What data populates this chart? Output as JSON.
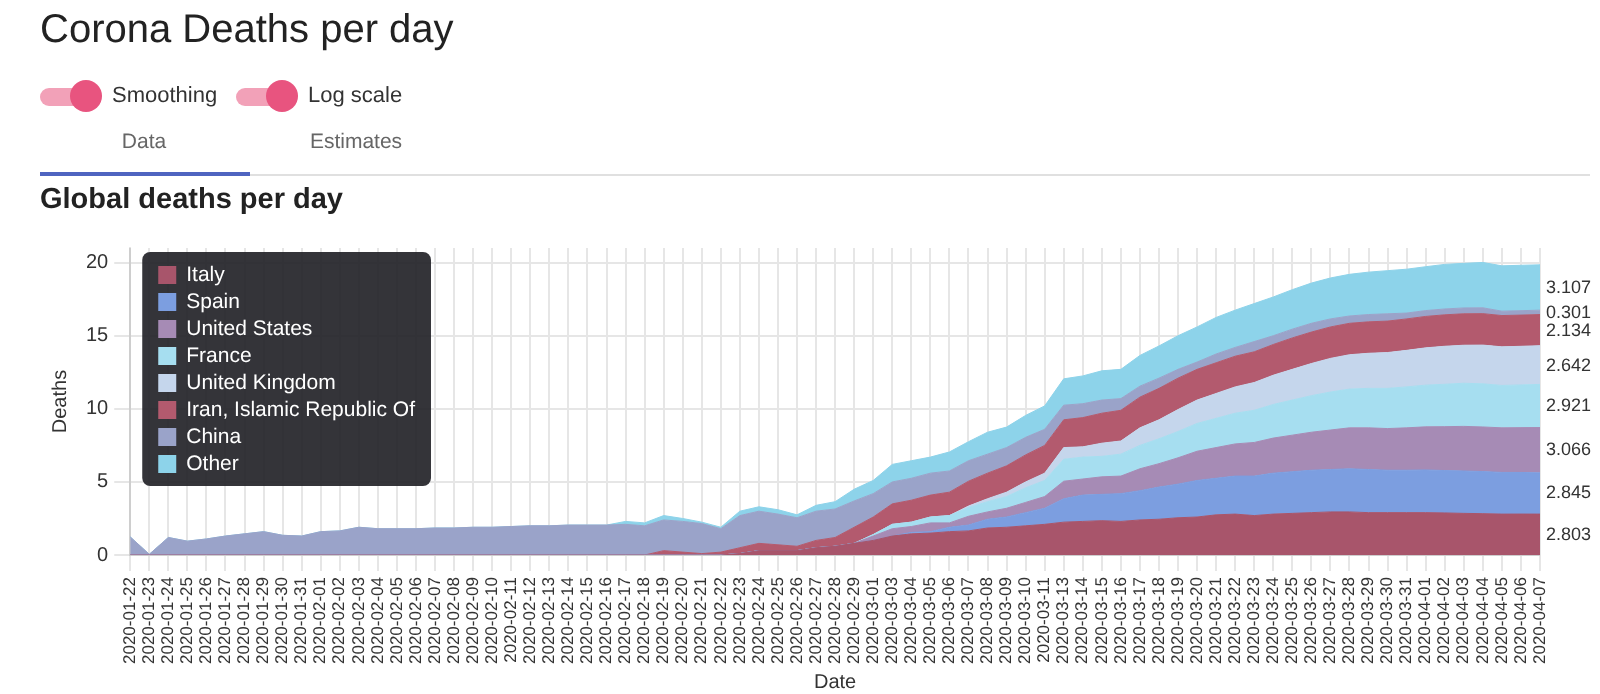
{
  "chart_data": {
    "type": "area",
    "title": "Corona Deaths per day",
    "subtitle": "Global deaths per day",
    "xlabel": "Date",
    "ylabel": "Deaths",
    "annotations": [
      "Smoothing",
      "Log scale",
      "Data",
      "Estimates"
    ],
    "categories": [
      "2020-01-22",
      "2020-01-23",
      "2020-01-24",
      "2020-01-25",
      "2020-01-26",
      "2020-01-27",
      "2020-01-28",
      "2020-01-29",
      "2020-01-30",
      "2020-01-31",
      "2020-02-01",
      "2020-02-02",
      "2020-02-03",
      "2020-02-04",
      "2020-02-05",
      "2020-02-06",
      "2020-02-07",
      "2020-02-08",
      "2020-02-09",
      "2020-02-10",
      "2020-02-11",
      "2020-02-12",
      "2020-02-13",
      "2020-02-14",
      "2020-02-15",
      "2020-02-16",
      "2020-02-17",
      "2020-02-18",
      "2020-02-19",
      "2020-02-20",
      "2020-02-21",
      "2020-02-22",
      "2020-02-23",
      "2020-02-24",
      "2020-02-25",
      "2020-02-26",
      "2020-02-27",
      "2020-02-28",
      "2020-02-29",
      "2020-03-01",
      "2020-03-03",
      "2020-03-04",
      "2020-03-05",
      "2020-03-06",
      "2020-03-07",
      "2020-03-08",
      "2020-03-09",
      "2020-03-10",
      "2020-03-11",
      "2020-03-13",
      "2020-03-14",
      "2020-03-15",
      "2020-03-16",
      "2020-03-17",
      "2020-03-18",
      "2020-03-19",
      "2020-03-20",
      "2020-03-21",
      "2020-03-22",
      "2020-03-23",
      "2020-03-24",
      "2020-03-25",
      "2020-03-26",
      "2020-03-27",
      "2020-03-28",
      "2020-03-29",
      "2020-03-30",
      "2020-03-31",
      "2020-04-01",
      "2020-04-02",
      "2020-04-03",
      "2020-04-04",
      "2020-04-05",
      "2020-04-06",
      "2020-04-07"
    ],
    "stacked": true,
    "grid": true,
    "legend": "top left",
    "marker": "none",
    "ylim": [
      0,
      21
    ],
    "yticks": [
      0,
      5,
      10,
      15,
      20
    ],
    "series": [
      {
        "name": "Italy",
        "color": "#a8556b",
        "values": [
          0,
          0,
          0,
          0,
          0,
          0,
          0,
          0,
          0,
          0,
          0,
          0,
          0,
          0,
          0,
          0,
          0,
          0,
          0,
          0,
          0,
          0,
          0,
          0,
          0,
          0,
          0,
          0,
          0,
          0,
          0,
          0,
          0.1,
          0.3,
          0.3,
          0.3,
          0.5,
          0.6,
          0.8,
          1.0,
          1.3,
          1.45,
          1.5,
          1.6,
          1.65,
          1.85,
          1.9,
          2.0,
          2.1,
          2.25,
          2.3,
          2.35,
          2.3,
          2.4,
          2.45,
          2.55,
          2.6,
          2.75,
          2.8,
          2.7,
          2.8,
          2.85,
          2.9,
          2.95,
          2.95,
          2.9,
          2.9,
          2.9,
          2.9,
          2.88,
          2.85,
          2.83,
          2.8,
          2.803,
          2.8
        ],
        "value_labels": [
          null,
          null,
          null,
          null,
          null,
          null,
          null,
          null,
          null,
          null,
          null,
          null,
          null,
          null,
          null,
          null,
          null,
          null,
          null,
          null,
          null,
          null,
          null,
          null,
          null,
          null,
          null,
          null,
          null,
          null,
          null,
          null,
          null,
          null,
          null,
          null,
          null,
          null,
          null,
          null,
          null,
          null,
          null,
          null,
          null,
          null,
          null,
          null,
          null,
          null,
          null,
          null,
          null,
          null,
          null,
          null,
          null,
          null,
          null,
          null,
          null,
          null,
          null,
          null,
          null,
          null,
          null,
          null,
          null,
          null,
          null,
          null,
          null,
          "2.803",
          null
        ]
      },
      {
        "name": "Spain",
        "color": "#7c9ee0",
        "values": [
          0,
          0,
          0,
          0,
          0,
          0,
          0,
          0,
          0,
          0,
          0,
          0,
          0,
          0,
          0,
          0,
          0,
          0,
          0,
          0,
          0,
          0,
          0,
          0,
          0,
          0,
          0,
          0,
          0,
          0,
          0,
          0,
          0,
          0,
          0,
          0,
          0,
          0,
          0,
          0,
          0,
          0.1,
          0.1,
          0.3,
          0.4,
          0.6,
          0.7,
          0.9,
          1.1,
          1.6,
          1.8,
          1.8,
          1.9,
          2.0,
          2.2,
          2.3,
          2.5,
          2.5,
          2.6,
          2.7,
          2.8,
          2.85,
          2.9,
          2.9,
          2.95,
          2.95,
          2.9,
          2.9,
          2.92,
          2.9,
          2.9,
          2.88,
          2.85,
          2.845,
          2.82
        ],
        "value_labels": [
          null,
          null,
          null,
          null,
          null,
          null,
          null,
          null,
          null,
          null,
          null,
          null,
          null,
          null,
          null,
          null,
          null,
          null,
          null,
          null,
          null,
          null,
          null,
          null,
          null,
          null,
          null,
          null,
          null,
          null,
          null,
          null,
          null,
          null,
          null,
          null,
          null,
          null,
          null,
          null,
          null,
          null,
          null,
          null,
          null,
          null,
          null,
          null,
          null,
          null,
          null,
          null,
          null,
          null,
          null,
          null,
          null,
          null,
          null,
          null,
          null,
          null,
          null,
          null,
          null,
          null,
          null,
          null,
          null,
          null,
          null,
          null,
          null,
          "2.845",
          null
        ]
      },
      {
        "name": "United States",
        "color": "#a68bb5",
        "values": [
          0,
          0,
          0,
          0,
          0,
          0,
          0,
          0,
          0,
          0,
          0,
          0,
          0,
          0,
          0,
          0,
          0,
          0,
          0,
          0,
          0,
          0,
          0,
          0,
          0,
          0,
          0,
          0,
          0,
          0,
          0,
          0,
          0,
          0,
          0,
          0,
          0,
          0,
          0,
          0.3,
          0.5,
          0.4,
          0.6,
          0.3,
          0.6,
          0.5,
          0.6,
          0.7,
          0.8,
          1.2,
          1.1,
          1.2,
          1.2,
          1.5,
          1.6,
          1.8,
          2.0,
          2.1,
          2.2,
          2.3,
          2.4,
          2.5,
          2.6,
          2.7,
          2.8,
          2.85,
          2.85,
          2.9,
          2.95,
          3.0,
          3.05,
          3.05,
          3.05,
          3.066,
          3.1
        ],
        "value_labels": [
          null,
          null,
          null,
          null,
          null,
          null,
          null,
          null,
          null,
          null,
          null,
          null,
          null,
          null,
          null,
          null,
          null,
          null,
          null,
          null,
          null,
          null,
          null,
          null,
          null,
          null,
          null,
          null,
          null,
          null,
          null,
          null,
          null,
          null,
          null,
          null,
          null,
          null,
          null,
          null,
          null,
          null,
          null,
          null,
          null,
          null,
          null,
          null,
          null,
          null,
          null,
          null,
          null,
          null,
          null,
          null,
          null,
          null,
          null,
          null,
          null,
          null,
          null,
          null,
          null,
          null,
          null,
          null,
          null,
          null,
          null,
          null,
          null,
          "3.066",
          null
        ]
      },
      {
        "name": "France",
        "color": "#a6def0",
        "values": [
          0,
          0,
          0,
          0,
          0,
          0,
          0,
          0,
          0,
          0,
          0,
          0,
          0,
          0,
          0,
          0,
          0,
          0,
          0,
          0,
          0,
          0,
          0,
          0,
          0,
          0,
          0,
          0,
          0,
          0,
          0,
          0,
          0,
          0,
          0,
          0,
          0,
          0,
          0,
          0.1,
          0.3,
          0.3,
          0.4,
          0.5,
          0.6,
          0.7,
          0.8,
          1.0,
          1.1,
          1.5,
          1.5,
          1.4,
          1.5,
          1.6,
          1.7,
          1.8,
          1.9,
          2.0,
          2.1,
          2.2,
          2.3,
          2.4,
          2.5,
          2.6,
          2.65,
          2.7,
          2.75,
          2.8,
          2.85,
          2.9,
          2.95,
          2.95,
          2.9,
          2.921,
          2.95
        ],
        "value_labels": [
          null,
          null,
          null,
          null,
          null,
          null,
          null,
          null,
          null,
          null,
          null,
          null,
          null,
          null,
          null,
          null,
          null,
          null,
          null,
          null,
          null,
          null,
          null,
          null,
          null,
          null,
          null,
          null,
          null,
          null,
          null,
          null,
          null,
          null,
          null,
          null,
          null,
          null,
          null,
          null,
          null,
          null,
          null,
          null,
          null,
          null,
          null,
          null,
          null,
          null,
          null,
          null,
          null,
          null,
          null,
          null,
          null,
          null,
          null,
          null,
          null,
          null,
          null,
          null,
          null,
          null,
          null,
          null,
          null,
          null,
          null,
          null,
          null,
          "2.921",
          null
        ]
      },
      {
        "name": "United Kingdom",
        "color": "#c5d6ec",
        "values": [
          0,
          0,
          0,
          0,
          0,
          0,
          0,
          0,
          0,
          0,
          0,
          0,
          0,
          0,
          0,
          0,
          0,
          0,
          0,
          0,
          0,
          0,
          0,
          0,
          0,
          0,
          0,
          0,
          0,
          0,
          0,
          0,
          0,
          0,
          0,
          0,
          0,
          0,
          0,
          0,
          0,
          0,
          0,
          0,
          0.1,
          0.2,
          0.3,
          0.4,
          0.5,
          0.8,
          0.7,
          0.9,
          0.9,
          1.2,
          1.3,
          1.5,
          1.6,
          1.7,
          1.8,
          1.9,
          2.0,
          2.1,
          2.2,
          2.3,
          2.35,
          2.4,
          2.45,
          2.5,
          2.55,
          2.6,
          2.6,
          2.65,
          2.64,
          2.642,
          2.65
        ],
        "value_labels": [
          null,
          null,
          null,
          null,
          null,
          null,
          null,
          null,
          null,
          null,
          null,
          null,
          null,
          null,
          null,
          null,
          null,
          null,
          null,
          null,
          null,
          null,
          null,
          null,
          null,
          null,
          null,
          null,
          null,
          null,
          null,
          null,
          null,
          null,
          null,
          null,
          null,
          null,
          null,
          null,
          null,
          null,
          null,
          null,
          null,
          null,
          null,
          null,
          null,
          null,
          null,
          null,
          null,
          null,
          null,
          null,
          null,
          null,
          null,
          null,
          null,
          null,
          null,
          null,
          null,
          null,
          null,
          null,
          null,
          null,
          null,
          null,
          null,
          "2.642",
          null
        ]
      },
      {
        "name": "Iran, Islamic Republic Of",
        "color": "#b35a6e",
        "values": [
          0,
          0,
          0,
          0,
          0,
          0,
          0,
          0,
          0,
          0,
          0,
          0,
          0,
          0,
          0,
          0,
          0,
          0,
          0,
          0,
          0,
          0,
          0,
          0,
          0,
          0,
          0,
          0,
          0.3,
          0.2,
          0.1,
          0.2,
          0.4,
          0.5,
          0.4,
          0.3,
          0.5,
          0.6,
          1.1,
          1.2,
          1.4,
          1.5,
          1.5,
          1.6,
          1.7,
          1.75,
          1.8,
          1.85,
          1.9,
          1.9,
          2.0,
          2.05,
          2.1,
          2.1,
          2.15,
          2.15,
          2.1,
          2.1,
          2.1,
          2.1,
          2.1,
          2.15,
          2.15,
          2.15,
          2.15,
          2.15,
          2.15,
          2.15,
          2.15,
          2.15,
          2.15,
          2.15,
          2.14,
          2.134,
          2.13
        ],
        "value_labels": [
          null,
          null,
          null,
          null,
          null,
          null,
          null,
          null,
          null,
          null,
          null,
          null,
          null,
          null,
          null,
          null,
          null,
          null,
          null,
          null,
          null,
          null,
          null,
          null,
          null,
          null,
          null,
          null,
          null,
          null,
          null,
          null,
          null,
          null,
          null,
          null,
          null,
          null,
          null,
          null,
          null,
          null,
          null,
          null,
          null,
          null,
          null,
          null,
          null,
          null,
          null,
          null,
          null,
          null,
          null,
          null,
          null,
          null,
          null,
          null,
          null,
          null,
          null,
          null,
          null,
          null,
          null,
          null,
          null,
          null,
          null,
          null,
          null,
          "2.134",
          null
        ]
      },
      {
        "name": "China",
        "color": "#9aa3c9",
        "values": [
          1.24,
          0.05,
          1.2,
          0.95,
          1.1,
          1.3,
          1.45,
          1.6,
          1.35,
          1.3,
          1.6,
          1.65,
          1.9,
          1.8,
          1.8,
          1.8,
          1.85,
          1.85,
          1.9,
          1.9,
          1.95,
          2.0,
          2.0,
          2.05,
          2.05,
          2.05,
          2.1,
          2.0,
          2.1,
          2.1,
          2.05,
          1.6,
          2.2,
          2.2,
          2.1,
          1.95,
          2.0,
          1.95,
          1.8,
          1.6,
          1.5,
          1.5,
          1.5,
          1.45,
          1.4,
          1.3,
          1.25,
          1.2,
          1.1,
          1.0,
          0.95,
          0.9,
          0.8,
          0.75,
          0.7,
          0.6,
          0.5,
          0.6,
          0.6,
          0.7,
          0.6,
          0.6,
          0.6,
          0.55,
          0.5,
          0.5,
          0.5,
          0.4,
          0.4,
          0.4,
          0.4,
          0.4,
          0.3,
          0.301,
          0.3
        ],
        "value_labels": [
          null,
          null,
          null,
          null,
          null,
          null,
          null,
          null,
          null,
          null,
          null,
          null,
          null,
          null,
          null,
          null,
          null,
          null,
          null,
          null,
          null,
          null,
          null,
          null,
          null,
          null,
          null,
          null,
          null,
          null,
          null,
          null,
          null,
          null,
          null,
          null,
          null,
          null,
          null,
          null,
          null,
          null,
          null,
          null,
          null,
          null,
          null,
          null,
          null,
          null,
          null,
          null,
          null,
          null,
          null,
          null,
          null,
          null,
          null,
          null,
          null,
          null,
          null,
          null,
          null,
          null,
          null,
          null,
          null,
          null,
          null,
          null,
          null,
          "0.301",
          null
        ]
      },
      {
        "name": "Other",
        "color": "#8dd3ea",
        "values": [
          0,
          0,
          0,
          0,
          0,
          0,
          0,
          0,
          0,
          0,
          0,
          0,
          0,
          0,
          0,
          0,
          0,
          0,
          0,
          0,
          0,
          0,
          0,
          0,
          0,
          0,
          0.2,
          0.2,
          0.3,
          0.2,
          0.1,
          0.1,
          0.3,
          0.3,
          0.3,
          0.2,
          0.4,
          0.5,
          0.8,
          0.9,
          1.2,
          1.2,
          1.1,
          1.3,
          1.3,
          1.5,
          1.4,
          1.5,
          1.6,
          1.8,
          1.9,
          2.0,
          2.0,
          2.1,
          2.2,
          2.3,
          2.4,
          2.5,
          2.55,
          2.6,
          2.65,
          2.7,
          2.75,
          2.8,
          2.85,
          2.9,
          2.95,
          3.0,
          3.0,
          3.05,
          3.05,
          3.1,
          3.1,
          3.107,
          3.1
        ],
        "value_labels": [
          null,
          null,
          null,
          null,
          null,
          null,
          null,
          null,
          null,
          null,
          null,
          null,
          null,
          null,
          null,
          null,
          null,
          null,
          null,
          null,
          null,
          null,
          null,
          null,
          null,
          null,
          null,
          null,
          null,
          null,
          null,
          null,
          null,
          null,
          null,
          null,
          null,
          null,
          null,
          null,
          null,
          null,
          null,
          null,
          null,
          null,
          null,
          null,
          null,
          null,
          null,
          null,
          null,
          null,
          null,
          null,
          null,
          null,
          null,
          null,
          null,
          null,
          null,
          null,
          null,
          null,
          null,
          null,
          null,
          null,
          null,
          null,
          null,
          "3.107",
          null
        ]
      }
    ]
  }
}
